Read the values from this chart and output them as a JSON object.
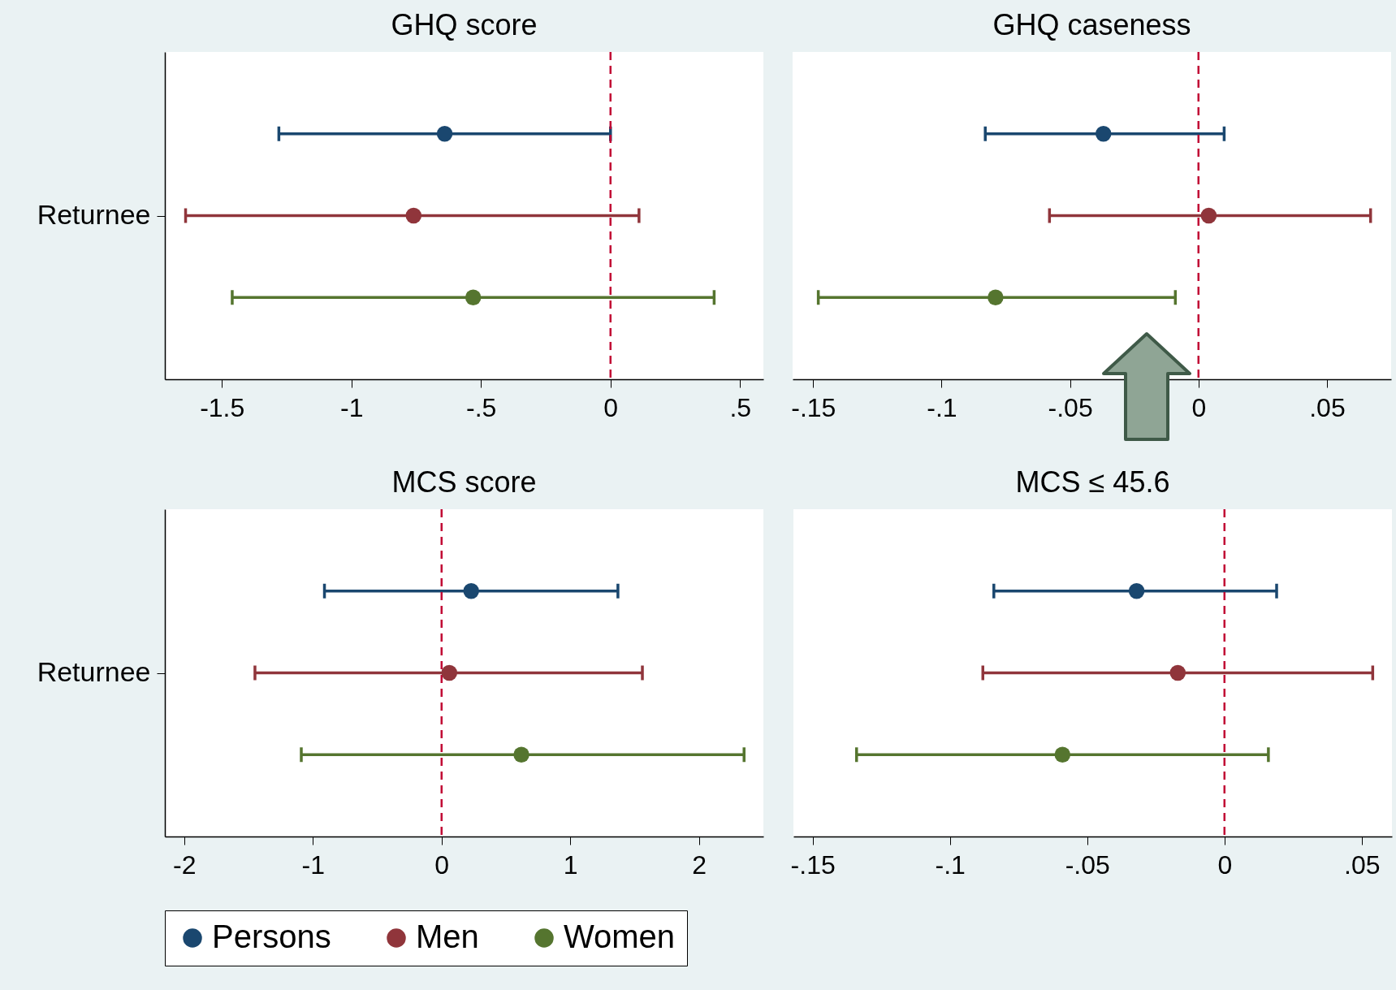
{
  "chart_data": [
    {
      "type": "scatter",
      "orientation": "horizontal",
      "title": "GHQ score",
      "categories": [
        null,
        "Returnee",
        null
      ],
      "xlim": [
        -1.72,
        0.59
      ],
      "xticks": [
        -1.5,
        -1,
        {
          "value": -0.5,
          "label": "-.5"
        },
        0,
        {
          "value": 0.5,
          "label": ".5"
        }
      ],
      "marker": "circle",
      "legend": "bottom",
      "ref_lines": [
        {
          "axis": "x",
          "value": 0,
          "color": "#c10534",
          "line_style": "dashed"
        }
      ],
      "series": [
        {
          "name": "Persons",
          "color": "#1a476f",
          "values": [
            -0.64,
            null,
            null
          ],
          "errors": [
            [
              -1.28,
              0.0
            ],
            null,
            null
          ]
        },
        {
          "name": "Men",
          "color": "#90353b",
          "values": [
            null,
            -0.76,
            null
          ],
          "errors": [
            null,
            [
              -1.64,
              0.11
            ],
            null
          ]
        },
        {
          "name": "Women",
          "color": "#55752f",
          "values": [
            null,
            null,
            -0.53
          ],
          "errors": [
            null,
            null,
            [
              -1.46,
              0.4
            ]
          ]
        }
      ]
    },
    {
      "type": "scatter",
      "orientation": "horizontal",
      "title": "GHQ caseness",
      "categories": [
        null,
        null,
        null
      ],
      "tick_labels": "x",
      "xlim": [
        -0.158,
        0.075
      ],
      "xticks": [
        {
          "value": -0.15,
          "label": "-.15"
        },
        {
          "value": -0.1,
          "label": "-.1"
        },
        {
          "value": -0.05,
          "label": "-.05"
        },
        0,
        {
          "value": 0.05,
          "label": ".05"
        }
      ],
      "marker": "circle",
      "legend": "bottom",
      "ref_lines": [
        {
          "axis": "x",
          "value": 0,
          "color": "#c10534",
          "line_style": "dashed"
        }
      ],
      "series": [
        {
          "name": "Persons",
          "color": "#1a476f",
          "values": [
            -0.037,
            null,
            null
          ],
          "errors": [
            [
              -0.083,
              0.01
            ],
            null,
            null
          ]
        },
        {
          "name": "Men",
          "color": "#90353b",
          "values": [
            null,
            0.004,
            null
          ],
          "errors": [
            null,
            [
              -0.058,
              0.067
            ],
            null
          ]
        },
        {
          "name": "Women",
          "color": "#55752f",
          "values": [
            null,
            null,
            -0.079
          ],
          "errors": [
            null,
            null,
            [
              -0.148,
              -0.009
            ]
          ]
        }
      ]
    },
    {
      "type": "scatter",
      "orientation": "horizontal",
      "title": "MCS score",
      "categories": [
        null,
        "Returnee",
        null
      ],
      "xlim": [
        -2.15,
        2.5
      ],
      "xticks": [
        -2,
        -1,
        0,
        1,
        2
      ],
      "marker": "circle",
      "legend": "bottom",
      "ref_lines": [
        {
          "axis": "x",
          "value": 0,
          "color": "#c10534",
          "line_style": "dashed"
        }
      ],
      "series": [
        {
          "name": "Persons",
          "color": "#1a476f",
          "values": [
            0.23,
            null,
            null
          ],
          "errors": [
            [
              -0.91,
              1.37
            ],
            null,
            null
          ]
        },
        {
          "name": "Men",
          "color": "#90353b",
          "values": [
            null,
            0.06,
            null
          ],
          "errors": [
            null,
            [
              -1.45,
              1.56
            ],
            null
          ]
        },
        {
          "name": "Women",
          "color": "#55752f",
          "values": [
            null,
            null,
            0.62
          ],
          "errors": [
            null,
            null,
            [
              -1.09,
              2.35
            ]
          ]
        }
      ]
    },
    {
      "type": "scatter",
      "orientation": "horizontal",
      "title": "MCS ≤ 45.6",
      "categories": [
        null,
        null,
        null
      ],
      "tick_labels": "x",
      "xlim": [
        -0.157,
        0.061
      ],
      "xticks": [
        {
          "value": -0.15,
          "label": "-.15"
        },
        {
          "value": -0.1,
          "label": "-.1"
        },
        {
          "value": -0.05,
          "label": "-.05"
        },
        0,
        {
          "value": 0.05,
          "label": ".05"
        }
      ],
      "marker": "circle",
      "legend": "bottom",
      "ref_lines": [
        {
          "axis": "x",
          "value": 0,
          "color": "#c10534",
          "line_style": "dashed"
        }
      ],
      "series": [
        {
          "name": "Persons",
          "color": "#1a476f",
          "values": [
            -0.032,
            null,
            null
          ],
          "errors": [
            [
              -0.084,
              0.019
            ],
            null,
            null
          ]
        },
        {
          "name": "Men",
          "color": "#90353b",
          "values": [
            null,
            -0.017,
            null
          ],
          "errors": [
            null,
            [
              -0.088,
              0.054
            ],
            null
          ]
        },
        {
          "name": "Women",
          "color": "#55752f",
          "values": [
            null,
            null,
            -0.059
          ],
          "errors": [
            null,
            null,
            [
              -0.134,
              0.016
            ]
          ]
        }
      ]
    }
  ]
}
